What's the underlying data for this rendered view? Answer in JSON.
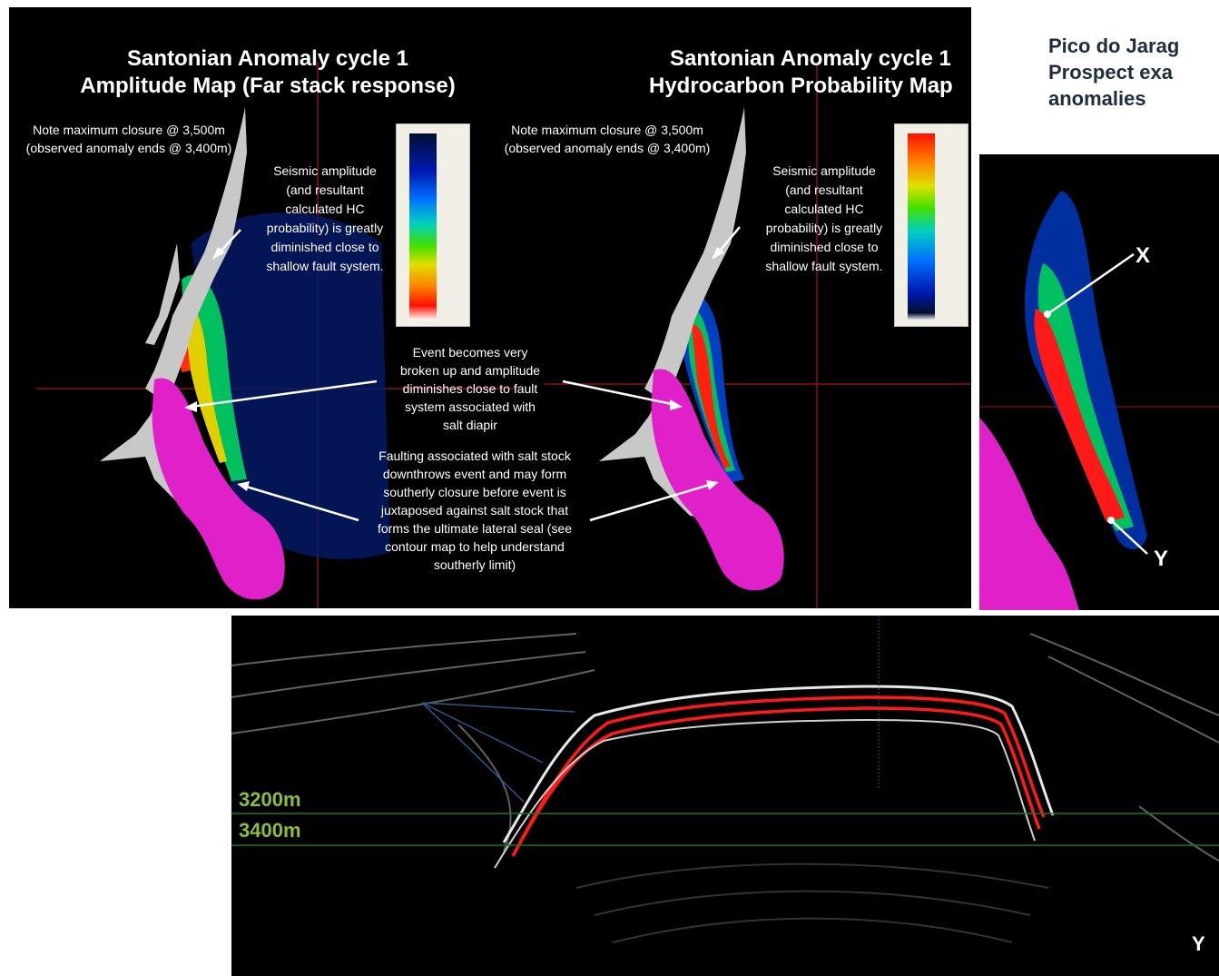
{
  "slide_title": [
    "Pico do Jarag",
    "Prospect exa",
    "anomalies"
  ],
  "left_panel": {
    "title_line1": "Santonian Anomaly cycle 1",
    "title_line2": "Amplitude Map (Far stack response)",
    "note_closure_line1": "Note maximum closure @ 3,500m",
    "note_closure_line2": "(observed anomaly ends @ 3,400m)",
    "note_seismic": [
      "Seismic amplitude",
      "(and resultant",
      "calculated HC",
      "probability) is greatly",
      "diminished close to",
      "shallow fault system."
    ]
  },
  "right_panel": {
    "title_line1": "Santonian Anomaly cycle 1",
    "title_line2": "Hydrocarbon Probability Map",
    "note_closure_line1": "Note maximum closure @ 3,500m",
    "note_closure_line2": "(observed anomaly ends @ 3,400m)",
    "note_seismic": [
      "Seismic amplitude",
      "(and resultant",
      "calculated HC",
      "probability) is greatly",
      "diminished close to",
      "shallow fault system."
    ]
  },
  "center_notes": {
    "event_broken": [
      "Event becomes very",
      "broken up and amplitude",
      "diminishes close to fault",
      "system associated with",
      "salt diapir"
    ],
    "faulting": [
      "Faulting associated with salt stock",
      "downthrows event and may form",
      "southerly closure before event is",
      "juxtaposed against salt stock that",
      "forms the ultimate lateral seal (see",
      "contour map to help understand",
      "southerly limit)"
    ]
  },
  "zoom_panel": {
    "label_x": "X",
    "label_y": "Y"
  },
  "section_panel": {
    "depth_3200": "3200m",
    "depth_3400": "3400m",
    "label_y": "Y"
  },
  "colors": {
    "salt": "#e020c8",
    "fault": "#c8c8c8",
    "anomaly_red": "#ff1a1a",
    "depth_label": "#8fbc3b"
  }
}
